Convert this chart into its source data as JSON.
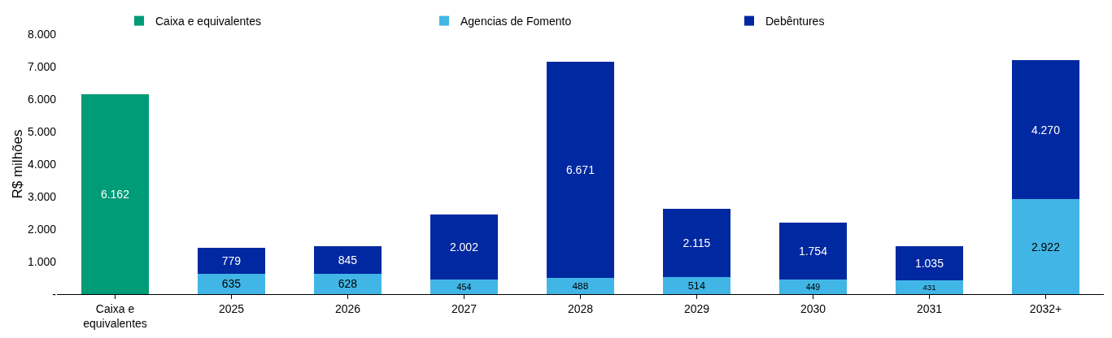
{
  "chart_data": {
    "type": "bar",
    "stacked": true,
    "ylabel": "R$ milhões",
    "legend": "top",
    "grid": false,
    "categories": [
      "Caixa e equivalentes",
      "2025",
      "2026",
      "2027",
      "2028",
      "2029",
      "2030",
      "2031",
      "2032+"
    ],
    "ylim": [
      0,
      8000
    ],
    "yticks": [
      {
        "value": 0,
        "label": "-"
      },
      {
        "value": 1000,
        "label": "1.000"
      },
      {
        "value": 2000,
        "label": "2.000"
      },
      {
        "value": 3000,
        "label": "3.000"
      },
      {
        "value": 4000,
        "label": "4.000"
      },
      {
        "value": 5000,
        "label": "5.000"
      },
      {
        "value": 6000,
        "label": "6.000"
      },
      {
        "value": 7000,
        "label": "7.000"
      },
      {
        "value": 8000,
        "label": "8.000"
      }
    ],
    "series": [
      {
        "name": "Caixa e equivalentes",
        "color": "#009b77",
        "values": [
          6162,
          null,
          null,
          null,
          null,
          null,
          null,
          null,
          null
        ],
        "value_labels": [
          "6.162",
          null,
          null,
          null,
          null,
          null,
          null,
          null,
          null
        ]
      },
      {
        "name": "Agencias de Fomento",
        "color": "#41b6e6",
        "values": [
          null,
          635,
          628,
          454,
          488,
          514,
          449,
          431,
          2922
        ],
        "value_labels": [
          null,
          "635",
          "628",
          "454",
          "488",
          "514",
          "449",
          "431",
          "2.922"
        ]
      },
      {
        "name": "Debêntures",
        "color": "#0028a0",
        "values": [
          null,
          779,
          845,
          2002,
          6671,
          2115,
          1754,
          1035,
          4270
        ],
        "value_labels": [
          null,
          "779",
          "845",
          "2.002",
          "6.671",
          "2.115",
          "1.754",
          "1.035",
          "4.270"
        ]
      }
    ]
  }
}
